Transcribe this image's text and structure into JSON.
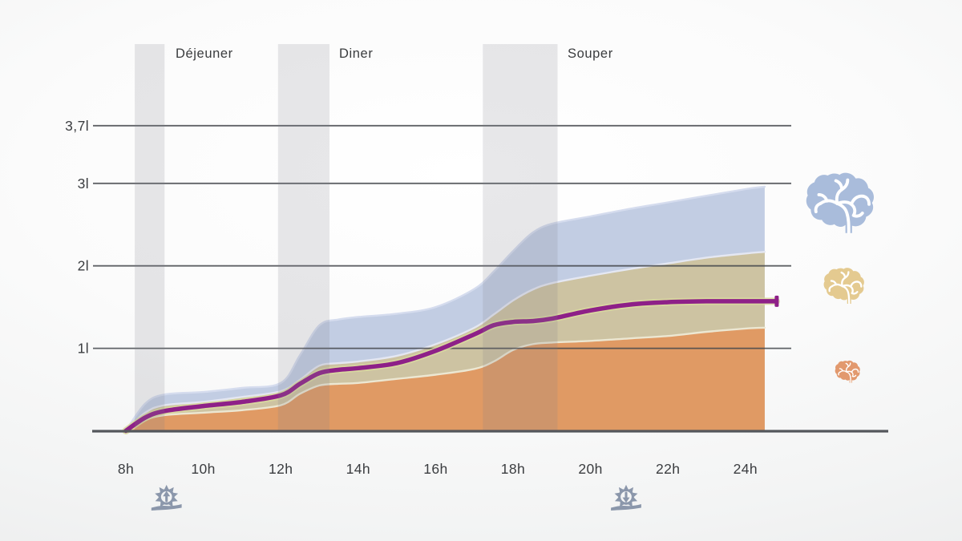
{
  "chart_data": {
    "type": "area",
    "title": "",
    "y_unit": "litres",
    "x_unit": "heure",
    "x_range": [
      8,
      24.5
    ],
    "y_ticks": [
      {
        "value": 1,
        "label": "1l"
      },
      {
        "value": 2,
        "label": "2l"
      },
      {
        "value": 3,
        "label": "3l"
      },
      {
        "value": 3.7,
        "label": "3,7l"
      }
    ],
    "x_ticks": [
      {
        "value": 8,
        "label": "8h"
      },
      {
        "value": 10,
        "label": "10h"
      },
      {
        "value": 12,
        "label": "12h"
      },
      {
        "value": 14,
        "label": "14h"
      },
      {
        "value": 16,
        "label": "16h"
      },
      {
        "value": 18,
        "label": "18h"
      },
      {
        "value": 20,
        "label": "20h"
      },
      {
        "value": 22,
        "label": "22h"
      },
      {
        "value": 24,
        "label": "24h"
      }
    ],
    "x": [
      8,
      8.5,
      9,
      10,
      11,
      12,
      12.5,
      13,
      13.5,
      14,
      15,
      16,
      17,
      17.5,
      18,
      18.5,
      19,
      20,
      21,
      22,
      23,
      24,
      24.5
    ],
    "series": [
      {
        "name": "upper-hydration-band-blue",
        "type": "area",
        "fill": "#c2cde3",
        "edge": "#d5dcee",
        "values": [
          0,
          0.33,
          0.44,
          0.47,
          0.52,
          0.58,
          0.92,
          1.28,
          1.35,
          1.38,
          1.42,
          1.5,
          1.72,
          1.93,
          2.18,
          2.4,
          2.51,
          2.6,
          2.69,
          2.77,
          2.85,
          2.93,
          2.96
        ]
      },
      {
        "name": "middle-hydration-band-tan",
        "type": "area",
        "fill": "#cdc3a2",
        "edge": "#e4e7f2",
        "values": [
          0,
          0.22,
          0.31,
          0.35,
          0.41,
          0.48,
          0.62,
          0.79,
          0.82,
          0.84,
          0.91,
          1.05,
          1.25,
          1.41,
          1.58,
          1.71,
          1.79,
          1.88,
          1.96,
          2.03,
          2.1,
          2.15,
          2.17
        ]
      },
      {
        "name": "lower-hydration-band-orange",
        "type": "area",
        "fill": "#e09a64",
        "edge": "#ece7d2",
        "values": [
          0,
          0.13,
          0.19,
          0.22,
          0.25,
          0.31,
          0.45,
          0.55,
          0.57,
          0.58,
          0.63,
          0.68,
          0.75,
          0.84,
          0.98,
          1.05,
          1.07,
          1.09,
          1.12,
          1.15,
          1.2,
          1.24,
          1.25
        ]
      },
      {
        "name": "water-intake-line-purple",
        "type": "line",
        "color": "#8e2088",
        "halo": "#d9db9f",
        "values": [
          0,
          0.16,
          0.24,
          0.3,
          0.35,
          0.43,
          0.57,
          0.7,
          0.74,
          0.76,
          0.82,
          0.97,
          1.17,
          1.28,
          1.32,
          1.33,
          1.36,
          1.46,
          1.53,
          1.56,
          1.57,
          1.57,
          1.57
        ],
        "extend_to_x": 24.8,
        "end_cap": true
      }
    ],
    "meal_bands": [
      {
        "label": "Déjeuner",
        "from": 8.23,
        "to": 9.0
      },
      {
        "label": "Diner",
        "from": 11.93,
        "to": 13.26
      },
      {
        "label": "Souper",
        "from": 17.22,
        "to": 19.15
      }
    ],
    "sun_markers": [
      {
        "type": "sunrise",
        "hour": 9.05
      },
      {
        "type": "sunset",
        "hour": 20.92
      }
    ],
    "legend": {
      "items": [
        {
          "icon": "brain-icon",
          "series": "upper-hydration-band-blue",
          "color": "#a9bcdb",
          "size": "large"
        },
        {
          "icon": "brain-icon",
          "series": "middle-hydration-band-tan",
          "color": "#e4ca90",
          "size": "medium"
        },
        {
          "icon": "brain-icon",
          "series": "lower-hydration-band-orange",
          "color": "#e2996e",
          "size": "small"
        }
      ]
    },
    "colors": {
      "grid": "#45484d",
      "baseline": "#54575c",
      "meal_band": "rgba(127,130,138,0.18)",
      "text": "#3b3d40",
      "sun_icon": "#8b97ab"
    },
    "grid_on": true,
    "legend_position": "right"
  }
}
